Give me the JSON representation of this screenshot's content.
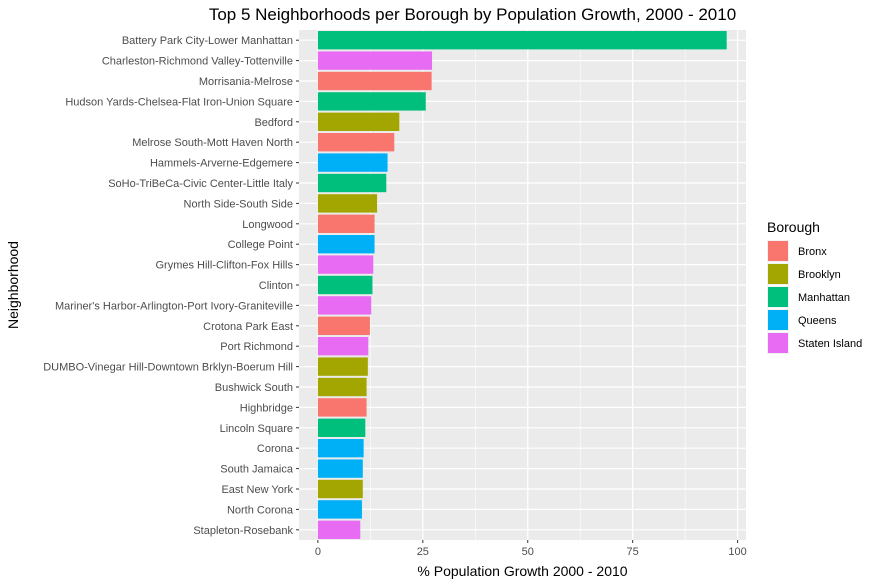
{
  "chart_data": {
    "type": "bar",
    "orientation": "horizontal",
    "title": "Top 5 Neighborhoods per Borough by Population Growth, 2000 - 2010",
    "xlabel": "% Population Growth 2000 - 2010",
    "ylabel": "Neighborhood",
    "xlim": [
      -4.5,
      102
    ],
    "xticks": [
      0,
      25,
      50,
      75,
      100
    ],
    "grid": true,
    "legend": {
      "title": "Borough",
      "position": "right",
      "items": [
        {
          "name": "Bronx",
          "color": "#F8766D"
        },
        {
          "name": "Brooklyn",
          "color": "#A3A500"
        },
        {
          "name": "Manhattan",
          "color": "#00BF7D"
        },
        {
          "name": "Queens",
          "color": "#00B0F6"
        },
        {
          "name": "Staten Island",
          "color": "#E76BF3"
        }
      ]
    },
    "categories": [
      "Battery Park City-Lower Manhattan",
      "Charleston-Richmond Valley-Tottenville",
      "Morrisania-Melrose",
      "Hudson Yards-Chelsea-Flat Iron-Union Square",
      "Bedford",
      "Melrose South-Mott Haven North",
      "Hammels-Arverne-Edgemere",
      "SoHo-TriBeCa-Civic Center-Little Italy",
      "North Side-South Side",
      "Longwood",
      "College Point",
      "Grymes Hill-Clifton-Fox Hills",
      "Clinton",
      "Mariner's Harbor-Arlington-Port Ivory-Graniteville",
      "Crotona Park East",
      "Port Richmond",
      "DUMBO-Vinegar Hill-Downtown Brklyn-Boerum Hill",
      "Bushwick South",
      "Highbridge",
      "Lincoln Square",
      "Corona",
      "South Jamaica",
      "East New York",
      "North Corona",
      "Stapleton-Rosebank"
    ],
    "values": [
      97.4,
      27.2,
      27.1,
      25.7,
      19.4,
      18.2,
      16.6,
      16.3,
      14.1,
      13.5,
      13.5,
      13.2,
      13.0,
      12.7,
      12.4,
      12.0,
      11.9,
      11.6,
      11.6,
      11.3,
      10.9,
      10.7,
      10.7,
      10.5,
      10.1
    ],
    "boroughs": [
      "Manhattan",
      "Staten Island",
      "Bronx",
      "Manhattan",
      "Brooklyn",
      "Bronx",
      "Queens",
      "Manhattan",
      "Brooklyn",
      "Bronx",
      "Queens",
      "Staten Island",
      "Manhattan",
      "Staten Island",
      "Bronx",
      "Staten Island",
      "Brooklyn",
      "Brooklyn",
      "Bronx",
      "Manhattan",
      "Queens",
      "Queens",
      "Brooklyn",
      "Queens",
      "Staten Island"
    ]
  }
}
